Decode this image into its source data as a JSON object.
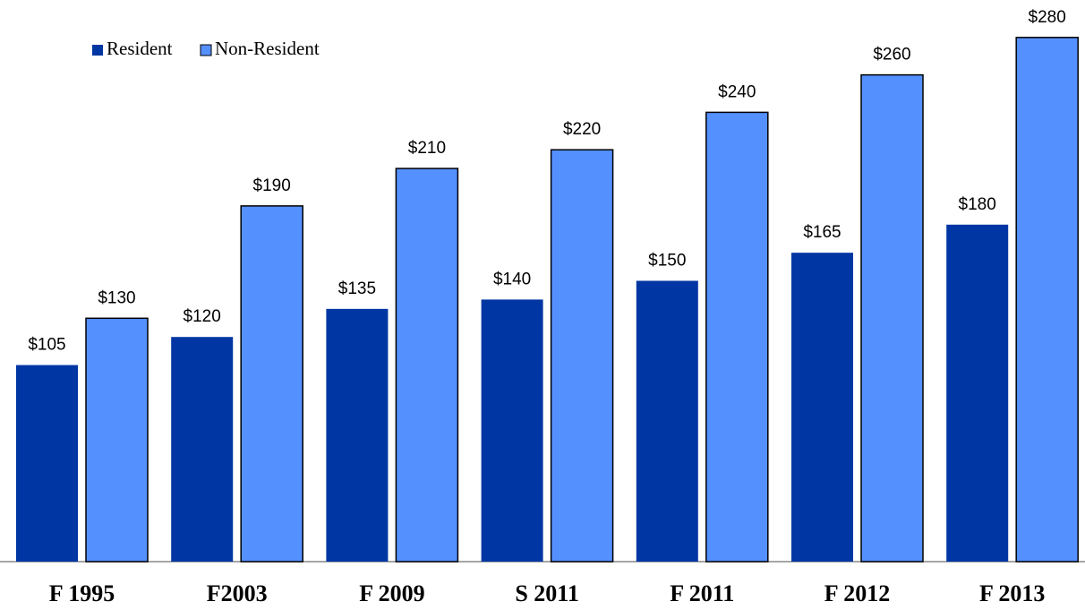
{
  "chart_data": {
    "type": "bar",
    "categories": [
      "F 1995",
      "F2003",
      "F 2009",
      "S 2011",
      "F 2011",
      "F 2012",
      "F 2013"
    ],
    "series": [
      {
        "name": "Resident",
        "color": "#0036a3",
        "values": [
          105,
          120,
          135,
          140,
          150,
          165,
          180
        ],
        "value_labels": [
          "$105",
          "$120",
          "$135",
          "$140",
          "$150",
          "$165",
          "$180"
        ]
      },
      {
        "name": "Non-Resident",
        "color": "#5590ff",
        "values": [
          130,
          190,
          210,
          220,
          240,
          260,
          280
        ],
        "value_labels": [
          "$130",
          "$190",
          "$210",
          "$220",
          "$240",
          "$260",
          "$280"
        ]
      }
    ],
    "ylim": [
      0,
      300
    ],
    "legend": "top-left"
  }
}
